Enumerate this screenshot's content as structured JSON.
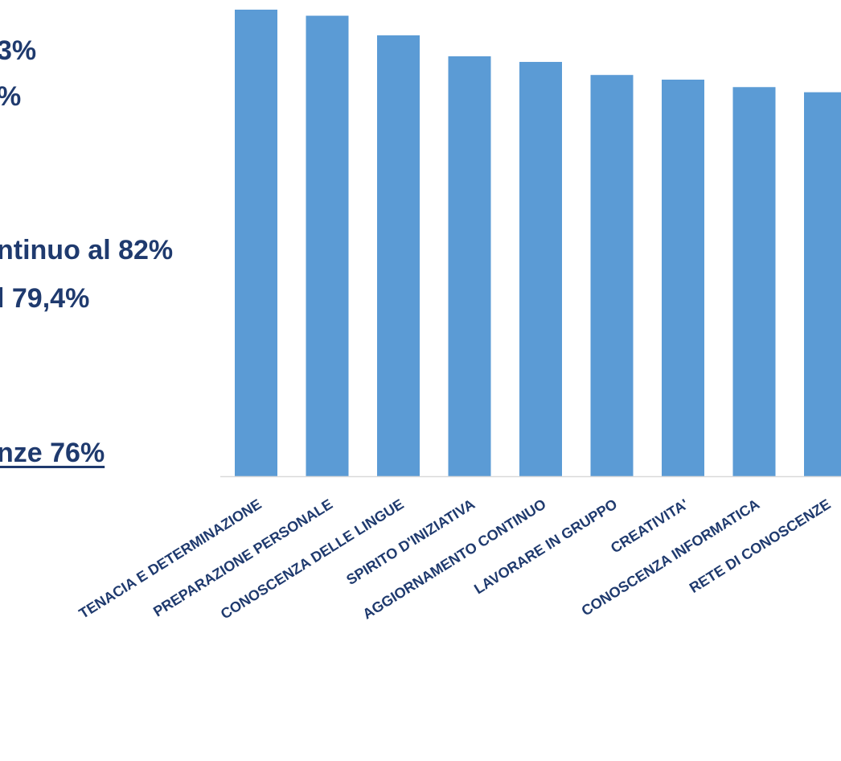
{
  "text_fragments": [
    "3%",
    "%",
    "ntinuo al 82%",
    "l 79,4%",
    "nze 76%"
  ],
  "colors": {
    "bar": "#5b9bd5",
    "text": "#1f3a6e",
    "axis": "#d9d9d9"
  },
  "chart_data": {
    "type": "bar",
    "title": "",
    "xlabel": "",
    "ylabel": "",
    "categories": [
      "TENACIA E DETERMINAZIONE",
      "PREPARAZIONE PERSONALE",
      "CONOSCENZA DELLE LINGUE",
      "SPIRITO D'INIZIATIVA",
      "AGGIORNAMENTO CONTINUO",
      "LAVORARE IN GRUPPO",
      "CREATIVITA'",
      "CONOSCENZA INFORMATICA",
      "RETE DI CONOSCENZE"
    ],
    "values": [
      100,
      98.7,
      94.5,
      90,
      88.8,
      86,
      85,
      83.4,
      82.3
    ],
    "ylim": [
      0,
      100
    ],
    "grid": false,
    "legend": "none"
  }
}
